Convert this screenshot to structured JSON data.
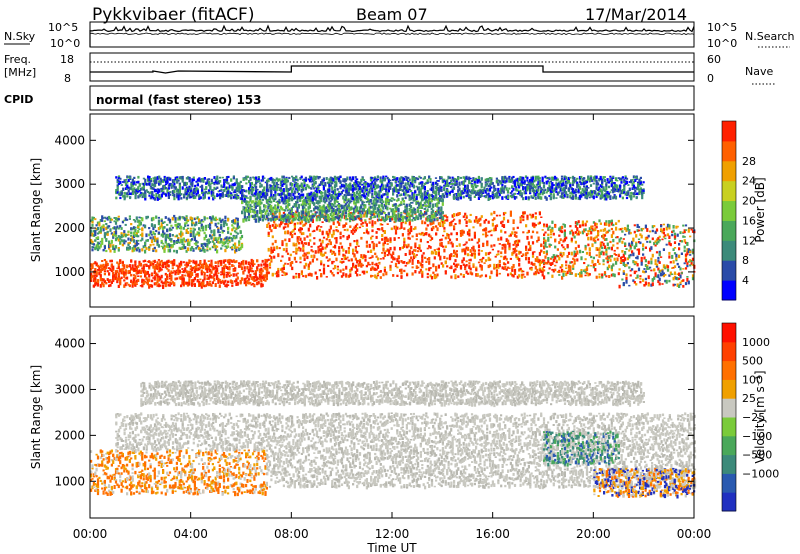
{
  "header": {
    "station": "Pykkvibaer (fitACF)",
    "beam": "Beam 07",
    "date": "17/Mar/2014"
  },
  "summary_panels": {
    "nsky": {
      "label": "N.Sky",
      "tick_top": "10^5",
      "tick_bottom": "10^0"
    },
    "nsearch": {
      "label": "N.Search",
      "tick_top": "10^5",
      "tick_bottom": "10^0"
    },
    "freq": {
      "label_line1": "Freq.",
      "label_line2": "[MHz]",
      "tick_top": "18",
      "tick_bottom": "8"
    },
    "nave": {
      "label": "Nave",
      "tick_top": "60",
      "tick_bottom": "0"
    },
    "cpid": {
      "label": "CPID",
      "text": "normal (fast stereo) 153"
    }
  },
  "chart_data": [
    {
      "type": "heatmap",
      "name": "power",
      "ylabel": "Slant Range [km]",
      "yticks": [
        "1000",
        "2000",
        "3000",
        "4000"
      ],
      "ylim": [
        200,
        4600
      ],
      "xlim": [
        0,
        24
      ],
      "colorbar": {
        "label": "Power [dB]",
        "ticks": [
          "4",
          "8",
          "12",
          "16",
          "20",
          "24",
          "28"
        ],
        "colors": [
          "#0000ff",
          "#2a4ba8",
          "#3c8a7a",
          "#4aa85a",
          "#7acb3a",
          "#c8d020",
          "#f0a000",
          "#ff6000",
          "#ff2000"
        ]
      },
      "bands": [
        {
          "from": 0,
          "to": 7,
          "rmin": 700,
          "rmax": 1300,
          "colors": [
            "#ff2000",
            "#ff2000",
            "#ff6000",
            "#ff5000"
          ]
        },
        {
          "from": 0,
          "to": 6,
          "rmin": 1500,
          "rmax": 2300,
          "colors": [
            "#4aa85a",
            "#7acb3a",
            "#f0a000",
            "#3c8a7a",
            "#2a4ba8"
          ]
        },
        {
          "from": 7,
          "to": 18,
          "rmin": 900,
          "rmax": 2400,
          "colors": [
            "#ff2000",
            "#ff6000",
            "#ff2000",
            "#f0a000",
            "#ff4000"
          ]
        },
        {
          "from": 6,
          "to": 14,
          "rmin": 2200,
          "rmax": 2700,
          "colors": [
            "#3c8a7a",
            "#4aa85a",
            "#2a4ba8",
            "#7acb3a"
          ]
        },
        {
          "from": 18,
          "to": 21,
          "rmin": 900,
          "rmax": 2200,
          "colors": [
            "#ff2000",
            "#ff6000",
            "#f0a000",
            "#4aa85a"
          ]
        },
        {
          "from": 21,
          "to": 24,
          "rmin": 700,
          "rmax": 2100,
          "colors": [
            "#ff2000",
            "#2a4ba8",
            "#4aa85a",
            "#f0a000"
          ]
        },
        {
          "from": 1,
          "to": 22,
          "rmin": 2700,
          "rmax": 3200,
          "colors": [
            "#2a4ba8",
            "#3c8a7a",
            "#0000ff",
            "#4aa85a"
          ]
        }
      ]
    },
    {
      "type": "heatmap",
      "name": "velocity",
      "ylabel": "Slant Range [km]",
      "yticks": [
        "1000",
        "2000",
        "3000",
        "4000"
      ],
      "ylim": [
        200,
        4600
      ],
      "xlim": [
        0,
        24
      ],
      "colorbar": {
        "label": "Velocity [m s⁻¹]",
        "ticks": [
          "1000",
          "500",
          "100",
          "25",
          "−25",
          "−100",
          "−500",
          "−1000"
        ],
        "colors": [
          "#2030c0",
          "#2a5ab0",
          "#3c8a7a",
          "#4aa85a",
          "#7acb3a",
          "#c8c8c0",
          "#f0a000",
          "#ff7000",
          "#ff4000",
          "#ff1000"
        ]
      },
      "bands": [
        {
          "from": 0,
          "to": 7,
          "rmin": 750,
          "rmax": 1700,
          "colors": [
            "#ff7000",
            "#f0a000",
            "#ff7000",
            "#c8c8c0"
          ]
        },
        {
          "from": 1,
          "to": 24,
          "rmin": 1700,
          "rmax": 2500,
          "colors": [
            "#c8c8c0",
            "#c8c8c0",
            "#c8c8c0",
            "#b8b8b0"
          ]
        },
        {
          "from": 7,
          "to": 24,
          "rmin": 900,
          "rmax": 1700,
          "colors": [
            "#c8c8c0",
            "#c8c8c0",
            "#b8b8b0"
          ]
        },
        {
          "from": 18,
          "to": 21,
          "rmin": 1400,
          "rmax": 2100,
          "colors": [
            "#3c8a7a",
            "#4aa85a",
            "#c8c8c0",
            "#2a5ab0"
          ]
        },
        {
          "from": 20,
          "to": 24,
          "rmin": 700,
          "rmax": 1300,
          "colors": [
            "#2030c0",
            "#ff7000",
            "#c8c8c0",
            "#f0a000"
          ]
        },
        {
          "from": 2,
          "to": 22,
          "rmin": 2700,
          "rmax": 3200,
          "colors": [
            "#c8c8c0",
            "#c8c8c0",
            "#b8b8b0"
          ]
        }
      ]
    }
  ],
  "x_axis": {
    "label": "Time UT",
    "ticks": [
      "00:00",
      "04:00",
      "08:00",
      "12:00",
      "16:00",
      "20:00",
      "00:00"
    ]
  }
}
